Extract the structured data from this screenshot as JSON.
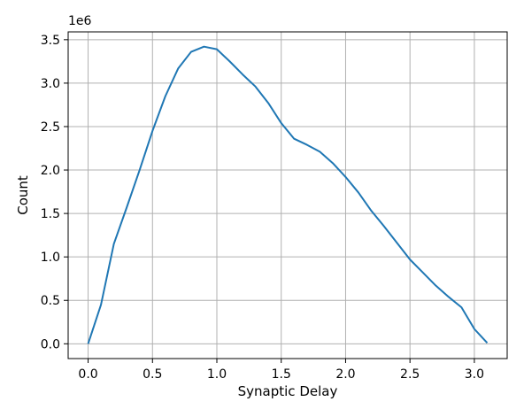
{
  "chart_data": {
    "type": "line",
    "xlabel": "Synaptic Delay",
    "ylabel": "Count",
    "y_offset_label": "1e6",
    "y_scale": 1000000,
    "xlim": [
      -0.155,
      3.255
    ],
    "ylim": [
      -170000,
      3590000
    ],
    "xticks": [
      0.0,
      0.5,
      1.0,
      1.5,
      2.0,
      2.5,
      3.0
    ],
    "xtick_labels": [
      "0.0",
      "0.5",
      "1.0",
      "1.5",
      "2.0",
      "2.5",
      "3.0"
    ],
    "yticks": [
      0,
      500000,
      1000000,
      1500000,
      2000000,
      2500000,
      3000000,
      3500000
    ],
    "ytick_labels": [
      "0.0",
      "0.5",
      "1.0",
      "1.5",
      "2.0",
      "2.5",
      "3.0",
      "3.5"
    ],
    "grid": true,
    "line_color": "#1f77b4",
    "series": [
      {
        "x": [
          0.0,
          0.1,
          0.2,
          0.3,
          0.4,
          0.5,
          0.6,
          0.7,
          0.8,
          0.9,
          1.0,
          1.1,
          1.2,
          1.3,
          1.4,
          1.5,
          1.6,
          1.7,
          1.8,
          1.9,
          2.0,
          2.1,
          2.2,
          2.3,
          2.4,
          2.5,
          2.6,
          2.7,
          2.8,
          2.9,
          3.0,
          3.1
        ],
        "y": [
          0,
          450000,
          1150000,
          1570000,
          2000000,
          2450000,
          2850000,
          3170000,
          3360000,
          3420000,
          3390000,
          3250000,
          3100000,
          2960000,
          2770000,
          2540000,
          2360000,
          2290000,
          2210000,
          2080000,
          1920000,
          1740000,
          1530000,
          1350000,
          1160000,
          970000,
          820000,
          670000,
          540000,
          420000,
          170000,
          10000
        ]
      }
    ]
  }
}
